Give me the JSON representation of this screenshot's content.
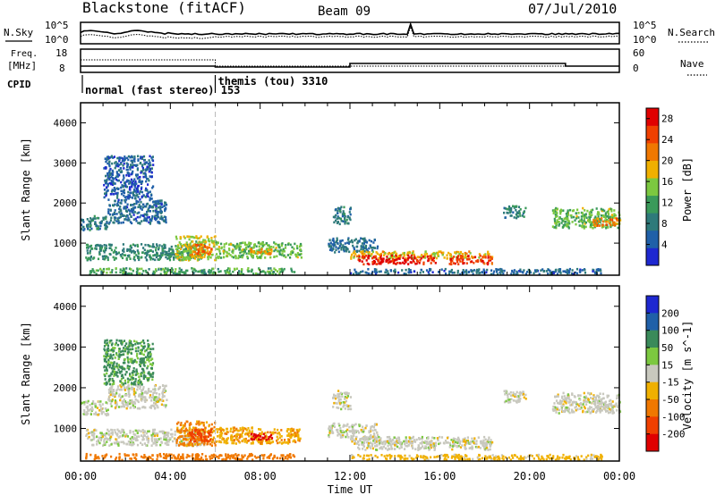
{
  "header": {
    "station": "Blackstone (fitACF)",
    "beam": "Beam 09",
    "date": "07/Jul/2010"
  },
  "side_labels": {
    "nsky": "N.Sky",
    "nsearch": "N.Search",
    "freq_line1": "Freq.",
    "freq_line2": "[MHz]",
    "nave": "Nave",
    "cpid": "CPID"
  },
  "noise_axis": {
    "top": "10^5",
    "bottom": "10^0"
  },
  "freq_axis": {
    "top": "18",
    "bottom": "8"
  },
  "nave_axis": {
    "top": "60",
    "bottom": "0"
  },
  "cpid_segments": [
    {
      "label": "normal (fast stereo) 153",
      "start_hour": 0,
      "end_hour": 6.0
    },
    {
      "label": "themis (tou) 3310",
      "start_hour": 6.0,
      "end_hour": 24
    }
  ],
  "colors": {
    "power": [
      "#1e28d0",
      "#2060a8",
      "#2e7a7a",
      "#3a9a5a",
      "#7cc840",
      "#f0b000",
      "#f07800",
      "#f04000",
      "#e00000"
    ],
    "velocity": [
      "#1e28d0",
      "#2060a8",
      "#3a8a5a",
      "#7cc840",
      "#c8c8be",
      "#f0b000",
      "#f07800",
      "#f04000",
      "#e00000"
    ],
    "noise_line": "#000000",
    "freq_line": "#000000"
  },
  "chart_data": [
    {
      "type": "heatmap",
      "name": "power",
      "xlabel": "",
      "ylabel": "Slant Range [km]",
      "xlim": [
        0,
        24
      ],
      "ylim": [
        200,
        4500
      ],
      "yticks": [
        1000,
        2000,
        3000,
        4000
      ],
      "colorbar_label": "Power [dB]",
      "colorbar_ticks": [
        4,
        8,
        12,
        16,
        20,
        24,
        28
      ],
      "colorbar_range": [
        0,
        30
      ],
      "regions": [
        {
          "t0": 0.0,
          "t1": 1.2,
          "r0": 1350,
          "r1": 1700,
          "v": 8
        },
        {
          "t0": 0.2,
          "t1": 5.5,
          "r0": 600,
          "r1": 1000,
          "v": 10
        },
        {
          "t0": 1.2,
          "t1": 3.8,
          "r0": 1500,
          "r1": 2100,
          "v": 6
        },
        {
          "t0": 1.0,
          "t1": 3.2,
          "r0": 2100,
          "r1": 3200,
          "v": 5
        },
        {
          "t0": 0.2,
          "t1": 9.5,
          "r0": 250,
          "r1": 400,
          "v": 12
        },
        {
          "t0": 4.2,
          "t1": 6.0,
          "r0": 600,
          "r1": 1200,
          "v": 16
        },
        {
          "t0": 4.8,
          "t1": 5.8,
          "r0": 700,
          "r1": 1000,
          "v": 22
        },
        {
          "t0": 6.0,
          "t1": 9.8,
          "r0": 650,
          "r1": 1050,
          "v": 14
        },
        {
          "t0": 7.5,
          "t1": 8.5,
          "r0": 750,
          "r1": 900,
          "v": 20
        },
        {
          "t0": 11.2,
          "t1": 12.0,
          "r0": 1500,
          "r1": 1950,
          "v": 8
        },
        {
          "t0": 11.0,
          "t1": 13.2,
          "r0": 800,
          "r1": 1150,
          "v": 7
        },
        {
          "t0": 12.0,
          "t1": 18.3,
          "r0": 640,
          "r1": 820,
          "v": 18
        },
        {
          "t0": 12.3,
          "t1": 15.8,
          "r0": 500,
          "r1": 720,
          "v": 28
        },
        {
          "t0": 16.4,
          "t1": 18.3,
          "r0": 500,
          "r1": 720,
          "v": 26
        },
        {
          "t0": 12.0,
          "t1": 23.2,
          "r0": 250,
          "r1": 380,
          "v": 6
        },
        {
          "t0": 18.8,
          "t1": 19.8,
          "r0": 1650,
          "r1": 1950,
          "v": 9
        },
        {
          "t0": 21.0,
          "t1": 24.0,
          "r0": 1400,
          "r1": 1900,
          "v": 14
        },
        {
          "t0": 22.8,
          "t1": 24.0,
          "r0": 1450,
          "r1": 1650,
          "v": 22
        }
      ]
    },
    {
      "type": "heatmap",
      "name": "velocity",
      "xlabel": "Time UT",
      "ylabel": "Slant Range [km]",
      "xlim": [
        0,
        24
      ],
      "ylim": [
        200,
        4500
      ],
      "yticks": [
        1000,
        2000,
        3000,
        4000
      ],
      "xticks": [
        "00:00",
        "04:00",
        "08:00",
        "12:00",
        "16:00",
        "20:00",
        "00:00"
      ],
      "colorbar_label": "Velocity [m s^-1]",
      "colorbar_ticks": [
        200,
        100,
        50,
        15,
        -15,
        -50,
        -100,
        -200
      ],
      "regions": [
        {
          "t0": 0.0,
          "t1": 1.2,
          "r0": 1350,
          "r1": 1700,
          "v": 0
        },
        {
          "t0": 0.2,
          "t1": 5.5,
          "r0": 600,
          "r1": 1000,
          "v": 0
        },
        {
          "t0": 1.2,
          "t1": 3.8,
          "r0": 1500,
          "r1": 2100,
          "v": 0
        },
        {
          "t0": 1.0,
          "t1": 3.2,
          "r0": 2100,
          "r1": 3200,
          "v": 60
        },
        {
          "t0": 0.2,
          "t1": 9.5,
          "r0": 250,
          "r1": 400,
          "v": -80
        },
        {
          "t0": 4.2,
          "t1": 6.0,
          "r0": 600,
          "r1": 1200,
          "v": -60
        },
        {
          "t0": 4.8,
          "t1": 5.8,
          "r0": 700,
          "r1": 1000,
          "v": -150
        },
        {
          "t0": 6.0,
          "t1": 9.8,
          "r0": 650,
          "r1": 1050,
          "v": -40
        },
        {
          "t0": 7.5,
          "t1": 8.5,
          "r0": 750,
          "r1": 900,
          "v": -220
        },
        {
          "t0": 11.2,
          "t1": 12.0,
          "r0": 1500,
          "r1": 1950,
          "v": 0
        },
        {
          "t0": 11.0,
          "t1": 13.2,
          "r0": 800,
          "r1": 1150,
          "v": 0
        },
        {
          "t0": 12.0,
          "t1": 18.3,
          "r0": 640,
          "r1": 820,
          "v": 0
        },
        {
          "t0": 12.3,
          "t1": 15.8,
          "r0": 500,
          "r1": 720,
          "v": 0
        },
        {
          "t0": 16.4,
          "t1": 18.3,
          "r0": 500,
          "r1": 720,
          "v": 0
        },
        {
          "t0": 12.0,
          "t1": 23.2,
          "r0": 250,
          "r1": 380,
          "v": -30
        },
        {
          "t0": 18.8,
          "t1": 19.8,
          "r0": 1650,
          "r1": 1950,
          "v": 0
        },
        {
          "t0": 21.0,
          "t1": 24.0,
          "r0": 1400,
          "r1": 1900,
          "v": 0
        },
        {
          "t0": 22.8,
          "t1": 24.0,
          "r0": 1450,
          "r1": 1650,
          "v": 0
        }
      ]
    }
  ]
}
